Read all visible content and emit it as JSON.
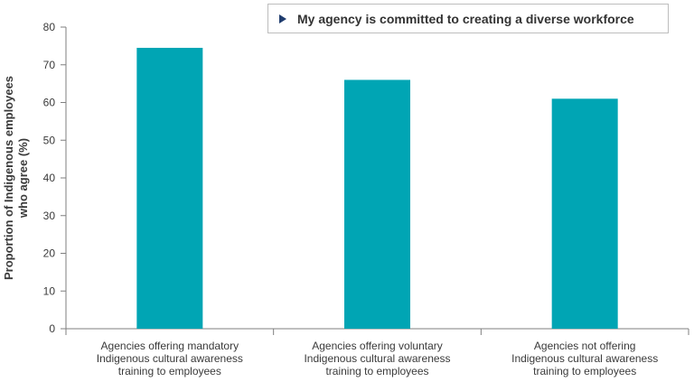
{
  "chart_data": {
    "type": "bar",
    "categories": [
      [
        "Agencies offering mandatory",
        "Indigenous cultural awareness",
        "training to employees"
      ],
      [
        "Agencies offering voluntary",
        "Indigenous cultural awareness",
        "training to employees"
      ],
      [
        "Agencies not offering",
        "Indigenous cultural awareness",
        "training to employees"
      ]
    ],
    "series": [
      {
        "name": "My agency is committed to creating a diverse workforce",
        "values": [
          74.5,
          66,
          61
        ]
      }
    ],
    "ylabel_lines": [
      "Proportion of Indigenous employees",
      "who agree (%)"
    ],
    "ylim": [
      0,
      80
    ],
    "yticks": [
      0,
      10,
      20,
      30,
      40,
      50,
      60,
      70,
      80
    ],
    "bar_color": "#00a5b4",
    "legend_marker_color": "#1f3c6e",
    "legend_position": "top-right",
    "grid": false
  }
}
